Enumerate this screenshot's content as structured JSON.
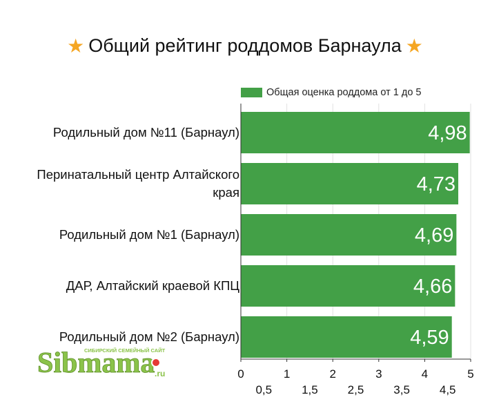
{
  "chart_data": {
    "type": "bar",
    "orientation": "horizontal",
    "title": "Общий рейтинг роддомов Барнаула",
    "title_icon": "star-icon",
    "categories": [
      [
        "Родильный дом №11 (Барнаул)"
      ],
      [
        "Перинатальный центр Алтайского",
        "края"
      ],
      [
        "Родильный дом №1 (Барнаул)"
      ],
      [
        "ДАР, Алтайский краевой КПЦ"
      ],
      [
        "Родильный дом №2 (Барнаул)"
      ]
    ],
    "series": [
      {
        "name": "Общая оценка роддома от 1 до 5",
        "color": "#43a047",
        "values": [
          4.98,
          4.73,
          4.69,
          4.66,
          4.59
        ],
        "value_labels": [
          "4,98",
          "4,73",
          "4,69",
          "4,66",
          "4,59"
        ]
      }
    ],
    "xlim": [
      0,
      5
    ],
    "major_ticks": [
      {
        "value": 0,
        "label": "0"
      },
      {
        "value": 1,
        "label": "1"
      },
      {
        "value": 2,
        "label": "2"
      },
      {
        "value": 3,
        "label": "3"
      },
      {
        "value": 4,
        "label": "4"
      },
      {
        "value": 5,
        "label": "5"
      }
    ],
    "minor_ticks": [
      {
        "value": 0.5,
        "label": "0,5"
      },
      {
        "value": 1.5,
        "label": "1,5"
      },
      {
        "value": 2.5,
        "label": "2,5"
      },
      {
        "value": 3.5,
        "label": "3,5"
      },
      {
        "value": 4.5,
        "label": "4,5"
      }
    ],
    "grid": true,
    "gridline_color": "#e2e2e2",
    "legend_position": "top"
  },
  "watermark": {
    "brand": "Sibmama",
    "tagline": "СИБИРСКИЙ СЕМЕЙНЫЙ САЙТ",
    "domain": ".ru",
    "color": "#8bc34a",
    "accent": "#e53935"
  }
}
